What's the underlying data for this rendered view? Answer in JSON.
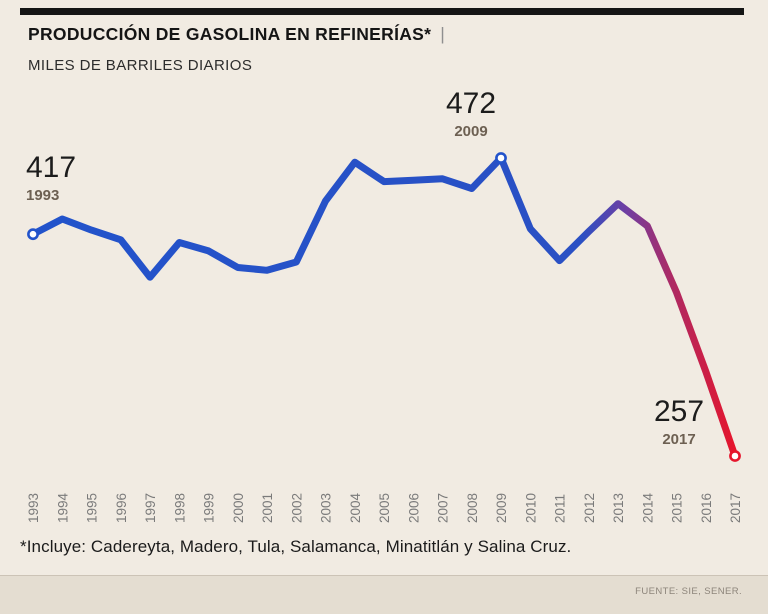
{
  "header": {
    "title": "PRODUCCIÓN DE GASOLINA EN REFINERÍAS*",
    "separator": "|",
    "subtitle": "MILES DE BARRILES DIARIOS"
  },
  "chart_data": {
    "type": "line",
    "title": "PRODUCCIÓN DE GASOLINA EN REFINERÍAS*",
    "subtitle": "MILES DE BARRILES DIARIOS",
    "xlabel": "",
    "ylabel": "Miles de barriles diarios",
    "ylim": [
      250,
      480
    ],
    "grid": false,
    "legend": "none",
    "x": [
      1993,
      1994,
      1995,
      1996,
      1997,
      1998,
      1999,
      2000,
      2001,
      2002,
      2003,
      2004,
      2005,
      2006,
      2007,
      2008,
      2009,
      2010,
      2011,
      2012,
      2013,
      2014,
      2015,
      2016,
      2017
    ],
    "values": [
      417,
      428,
      420,
      413,
      386,
      411,
      405,
      393,
      391,
      397,
      441,
      469,
      455,
      456,
      457,
      450,
      472,
      421,
      398,
      419,
      439,
      423,
      375,
      318,
      257
    ],
    "annotations": [
      {
        "value": "417",
        "year": "1993"
      },
      {
        "value": "472",
        "year": "2009"
      },
      {
        "value": "257",
        "year": "2017"
      }
    ],
    "markers": [
      {
        "year": 1993,
        "color": "#2253cb"
      },
      {
        "year": 2009,
        "color": "#2253cb"
      },
      {
        "year": 2017,
        "color": "#e6152c"
      }
    ],
    "line_gradient": [
      {
        "offset": 0,
        "color": "#2253cb"
      },
      {
        "offset": 0.78,
        "color": "#2a50c4"
      },
      {
        "offset": 0.845,
        "color": "#6f3ea2"
      },
      {
        "offset": 0.91,
        "color": "#ad2a64"
      },
      {
        "offset": 1,
        "color": "#e6152c"
      }
    ],
    "axis_label_color": "#7b7b7b"
  },
  "footnote": "*Incluye: Cadereyta, Madero, Tula, Salamanca, Minatitlán y Salina Cruz.",
  "source": "FUENTE: SIE, SENER."
}
